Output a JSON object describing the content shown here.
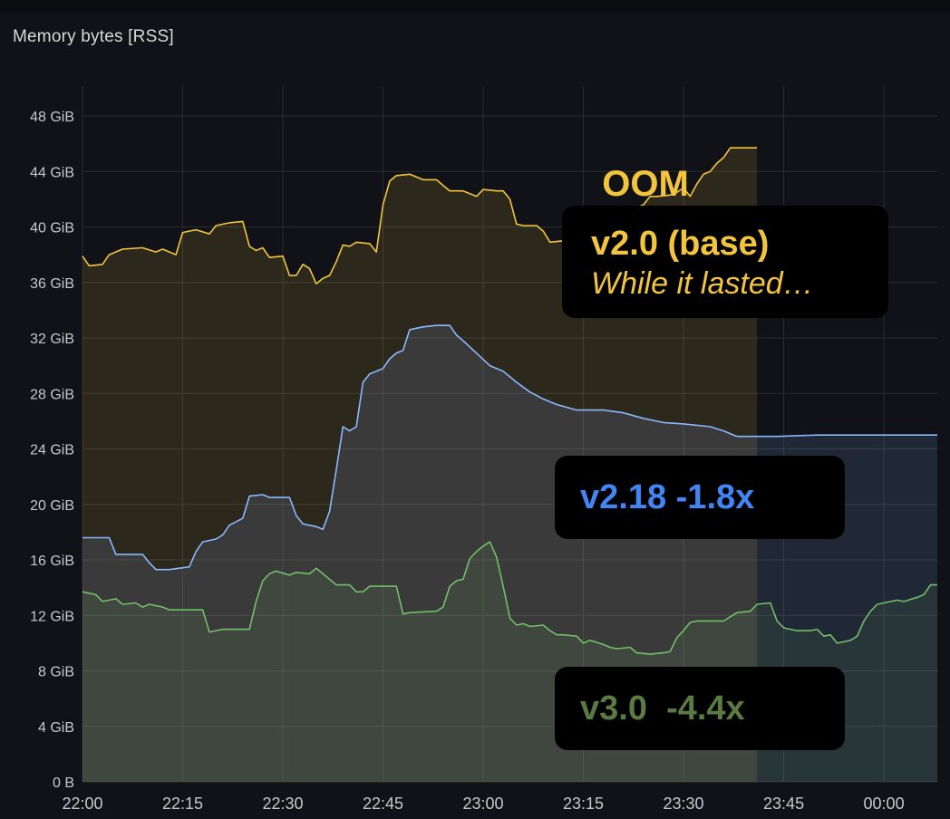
{
  "panel": {
    "title": "Memory bytes [RSS]"
  },
  "annotations": {
    "oom": "OOM",
    "oom_icon": "fire-icon",
    "base": {
      "title": "v2.0 (base)",
      "subtitle": "While it lasted…",
      "color": "#f2c53d"
    },
    "v218": {
      "title": "v2.18 -1.8x",
      "color": "#4285f4"
    },
    "v30": {
      "title": "v3.0  -4.4x",
      "color": "#5a7a42"
    }
  },
  "chart_data": {
    "type": "area",
    "x_ticks": [
      "22:00",
      "22:15",
      "22:30",
      "22:45",
      "23:00",
      "23:15",
      "23:30",
      "23:45",
      "00:00"
    ],
    "y_ticks": [
      "0 B",
      "4 GiB",
      "8 GiB",
      "12 GiB",
      "16 GiB",
      "20 GiB",
      "24 GiB",
      "28 GiB",
      "32 GiB",
      "36 GiB",
      "40 GiB",
      "44 GiB",
      "48 GiB"
    ],
    "xlim_minutes_from_2200": [
      0,
      128
    ],
    "ylim": [
      0,
      48
    ],
    "grid": true,
    "series": [
      {
        "color": "#f2c53d",
        "points": [
          [
            0,
            37.9
          ],
          [
            1,
            37.2
          ],
          [
            3,
            37.3
          ],
          [
            4,
            38.0
          ],
          [
            6,
            38.4
          ],
          [
            9,
            38.5
          ],
          [
            11,
            38.2
          ],
          [
            12,
            38.4
          ],
          [
            14,
            38.0
          ],
          [
            15,
            39.6
          ],
          [
            17,
            39.8
          ],
          [
            19,
            39.5
          ],
          [
            20,
            40.1
          ],
          [
            22,
            40.3
          ],
          [
            24,
            40.4
          ],
          [
            25,
            38.6
          ],
          [
            26,
            38.3
          ],
          [
            27,
            38.5
          ],
          [
            28,
            37.8
          ],
          [
            30,
            37.9
          ],
          [
            31,
            36.5
          ],
          [
            32,
            36.5
          ],
          [
            33,
            37.3
          ],
          [
            34,
            37.0
          ],
          [
            35,
            35.9
          ],
          [
            36,
            36.3
          ],
          [
            37,
            36.5
          ],
          [
            38,
            37.5
          ],
          [
            39,
            38.7
          ],
          [
            40,
            38.6
          ],
          [
            41,
            38.9
          ],
          [
            43,
            38.8
          ],
          [
            44,
            38.2
          ],
          [
            45,
            41.6
          ],
          [
            46,
            43.3
          ],
          [
            47,
            43.7
          ],
          [
            49,
            43.8
          ],
          [
            51,
            43.4
          ],
          [
            53,
            43.4
          ],
          [
            54,
            43.0
          ],
          [
            55,
            42.6
          ],
          [
            57,
            42.6
          ],
          [
            59,
            42.2
          ],
          [
            60,
            42.7
          ],
          [
            62,
            42.6
          ],
          [
            63,
            42.6
          ],
          [
            64,
            42.0
          ],
          [
            65,
            40.2
          ],
          [
            66,
            40.1
          ],
          [
            68,
            40.1
          ],
          [
            69,
            39.7
          ],
          [
            70,
            38.9
          ],
          [
            72,
            39.0
          ],
          [
            73,
            38.6
          ],
          [
            75,
            38.7
          ],
          [
            76,
            38.8
          ],
          [
            77,
            38.9
          ],
          [
            79,
            39.1
          ],
          [
            80,
            40.0
          ],
          [
            81,
            40.8
          ],
          [
            82,
            41.2
          ],
          [
            83,
            41.4
          ],
          [
            84,
            41.6
          ],
          [
            85,
            42.2
          ],
          [
            86,
            42.2
          ],
          [
            88,
            42.3
          ],
          [
            89,
            42.5
          ],
          [
            90,
            42.8
          ],
          [
            91,
            42.2
          ],
          [
            92,
            43.1
          ],
          [
            93,
            43.8
          ],
          [
            94,
            44.0
          ],
          [
            95,
            44.6
          ],
          [
            96,
            45.0
          ],
          [
            97,
            45.7
          ],
          [
            98,
            45.7
          ],
          [
            100,
            45.7
          ],
          [
            101,
            45.7
          ]
        ]
      },
      {
        "color": "#8ab8ff",
        "points": [
          [
            0,
            17.6
          ],
          [
            4,
            17.6
          ],
          [
            5,
            16.4
          ],
          [
            9,
            16.4
          ],
          [
            10,
            15.8
          ],
          [
            11,
            15.3
          ],
          [
            13,
            15.3
          ],
          [
            16,
            15.5
          ],
          [
            17,
            16.6
          ],
          [
            18,
            17.3
          ],
          [
            20,
            17.5
          ],
          [
            21,
            17.8
          ],
          [
            22,
            18.5
          ],
          [
            24,
            19.0
          ],
          [
            25,
            20.6
          ],
          [
            27,
            20.7
          ],
          [
            28,
            20.5
          ],
          [
            31,
            20.5
          ],
          [
            32,
            19.2
          ],
          [
            33,
            18.6
          ],
          [
            35,
            18.4
          ],
          [
            36,
            18.2
          ],
          [
            37,
            19.5
          ],
          [
            38,
            22.5
          ],
          [
            39,
            25.6
          ],
          [
            40,
            25.3
          ],
          [
            41,
            25.6
          ],
          [
            42,
            28.8
          ],
          [
            43,
            29.4
          ],
          [
            44,
            29.6
          ],
          [
            45,
            29.8
          ],
          [
            46,
            30.5
          ],
          [
            47,
            30.9
          ],
          [
            48,
            31.1
          ],
          [
            49,
            32.6
          ],
          [
            51,
            32.8
          ],
          [
            53,
            32.9
          ],
          [
            55,
            32.9
          ],
          [
            56,
            32.2
          ],
          [
            57,
            31.8
          ],
          [
            59,
            30.9
          ],
          [
            61,
            30.0
          ],
          [
            63,
            29.6
          ],
          [
            65,
            28.8
          ],
          [
            67,
            28.1
          ],
          [
            69,
            27.6
          ],
          [
            71,
            27.2
          ],
          [
            74,
            26.8
          ],
          [
            78,
            26.8
          ],
          [
            81,
            26.6
          ],
          [
            84,
            26.2
          ],
          [
            87,
            25.9
          ],
          [
            90,
            25.8
          ],
          [
            94,
            25.6
          ],
          [
            96,
            25.3
          ],
          [
            98,
            24.9
          ],
          [
            104,
            24.9
          ],
          [
            110,
            25.0
          ],
          [
            128,
            25.0
          ]
        ]
      },
      {
        "color": "#73bf69",
        "points": [
          [
            0,
            13.7
          ],
          [
            2,
            13.5
          ],
          [
            3,
            13.0
          ],
          [
            5,
            13.2
          ],
          [
            6,
            12.8
          ],
          [
            8,
            12.9
          ],
          [
            9,
            12.6
          ],
          [
            10,
            12.8
          ],
          [
            12,
            12.6
          ],
          [
            13,
            12.4
          ],
          [
            18,
            12.4
          ],
          [
            19,
            10.8
          ],
          [
            20,
            10.9
          ],
          [
            21,
            11.0
          ],
          [
            25,
            11.0
          ],
          [
            26,
            13.0
          ],
          [
            27,
            14.5
          ],
          [
            28,
            15.0
          ],
          [
            29,
            15.2
          ],
          [
            31,
            14.9
          ],
          [
            32,
            15.1
          ],
          [
            34,
            15.0
          ],
          [
            35,
            15.4
          ],
          [
            36,
            15.0
          ],
          [
            37,
            14.6
          ],
          [
            38,
            14.2
          ],
          [
            40,
            14.2
          ],
          [
            41,
            13.7
          ],
          [
            42,
            13.7
          ],
          [
            43,
            14.1
          ],
          [
            47,
            14.1
          ],
          [
            48,
            12.1
          ],
          [
            49,
            12.2
          ],
          [
            53,
            12.3
          ],
          [
            54,
            12.6
          ],
          [
            55,
            14.1
          ],
          [
            56,
            14.5
          ],
          [
            57,
            14.6
          ],
          [
            58,
            16.1
          ],
          [
            59,
            16.6
          ],
          [
            60,
            17.0
          ],
          [
            61,
            17.3
          ],
          [
            62,
            16.2
          ],
          [
            63,
            14.1
          ],
          [
            64,
            11.8
          ],
          [
            65,
            11.3
          ],
          [
            66,
            11.4
          ],
          [
            67,
            11.2
          ],
          [
            69,
            11.3
          ],
          [
            70,
            10.9
          ],
          [
            71,
            10.6
          ],
          [
            72,
            10.6
          ],
          [
            74,
            10.5
          ],
          [
            75,
            10.0
          ],
          [
            76,
            10.2
          ],
          [
            78,
            9.9
          ],
          [
            79,
            9.7
          ],
          [
            80,
            9.6
          ],
          [
            82,
            9.7
          ],
          [
            83,
            9.3
          ],
          [
            85,
            9.2
          ],
          [
            87,
            9.3
          ],
          [
            88,
            9.4
          ],
          [
            89,
            10.4
          ],
          [
            90,
            10.9
          ],
          [
            91,
            11.5
          ],
          [
            92,
            11.6
          ],
          [
            94,
            11.6
          ],
          [
            96,
            11.6
          ],
          [
            97,
            11.9
          ],
          [
            98,
            12.2
          ],
          [
            100,
            12.3
          ],
          [
            101,
            12.8
          ],
          [
            103,
            12.9
          ],
          [
            104,
            11.6
          ],
          [
            105,
            11.1
          ],
          [
            106,
            11.0
          ],
          [
            107,
            10.9
          ],
          [
            109,
            10.9
          ],
          [
            110,
            11.0
          ],
          [
            111,
            10.5
          ],
          [
            112,
            10.6
          ],
          [
            113,
            10.0
          ],
          [
            115,
            10.2
          ],
          [
            116,
            10.5
          ],
          [
            117,
            11.6
          ],
          [
            118,
            12.3
          ],
          [
            119,
            12.8
          ],
          [
            120,
            12.9
          ],
          [
            122,
            13.1
          ],
          [
            123,
            13.0
          ],
          [
            125,
            13.3
          ],
          [
            126,
            13.5
          ],
          [
            127,
            14.2
          ],
          [
            128,
            14.2
          ]
        ]
      }
    ]
  }
}
